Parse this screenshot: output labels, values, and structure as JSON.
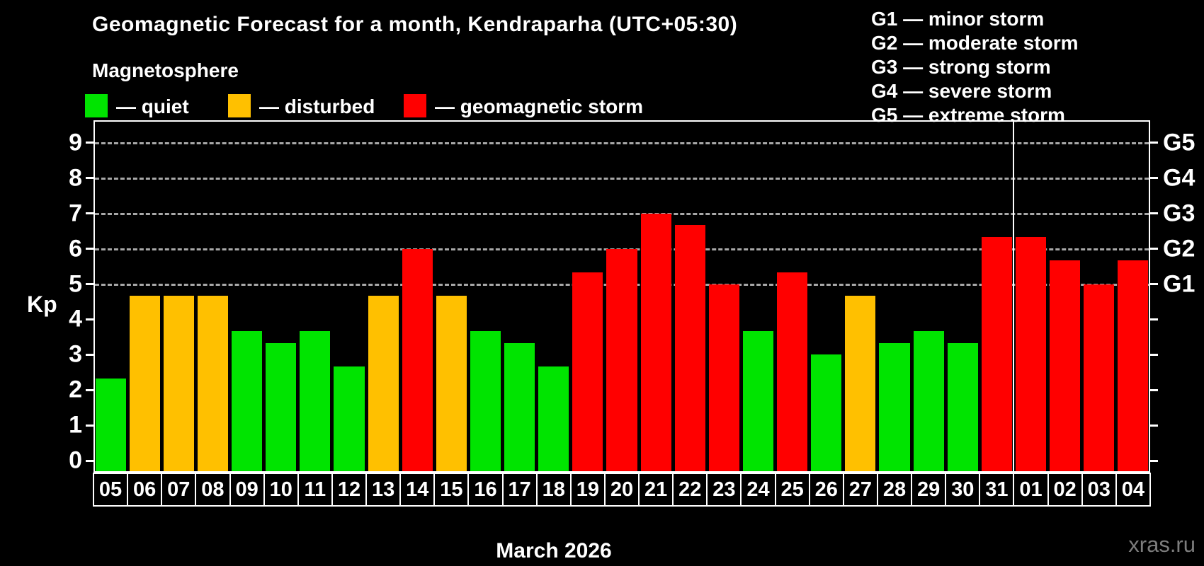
{
  "title": "Geomagnetic Forecast for a month, Kendraparha (UTC+05:30)",
  "subtitle": "Magnetosphere",
  "watermark": "xras.ru",
  "status_colors": {
    "quiet": "#00e400",
    "disturbed": "#ffc000",
    "storm": "#ff0000"
  },
  "legend": {
    "quiet_label": "— quiet",
    "disturbed_label": "— disturbed",
    "storm_label": "— geomagnetic storm"
  },
  "g_legend": [
    "G1 — minor storm",
    "G2 — moderate storm",
    "G3 — strong storm",
    "G4 — severe storm",
    "G5 — extreme storm"
  ],
  "chart_data": {
    "type": "bar",
    "title": "Geomagnetic Forecast for a month, Kendraparha (UTC+05:30)",
    "xlabel": "March 2026",
    "ylabel": "Kp",
    "ylim": [
      0,
      9.6
    ],
    "grid": "horizontal dashed lines at storm levels only",
    "legend_position": "top-left",
    "y_ticks": [
      0,
      1,
      2,
      3,
      4,
      5,
      6,
      7,
      8,
      9
    ],
    "gridlines_at": [
      5,
      6,
      7,
      8,
      9
    ],
    "right_axis_labels": [
      {
        "label": "G5",
        "kp": 9
      },
      {
        "label": "G4",
        "kp": 8
      },
      {
        "label": "G3",
        "kp": 7
      },
      {
        "label": "G2",
        "kp": 6
      },
      {
        "label": "G1",
        "kp": 5
      }
    ],
    "month_separator_index": 27,
    "categories": [
      "05",
      "06",
      "07",
      "08",
      "09",
      "10",
      "11",
      "12",
      "13",
      "14",
      "15",
      "16",
      "17",
      "18",
      "19",
      "20",
      "21",
      "22",
      "23",
      "24",
      "25",
      "26",
      "27",
      "28",
      "29",
      "30",
      "31",
      "01",
      "02",
      "03",
      "04"
    ],
    "values": [
      2.33,
      4.67,
      4.67,
      4.67,
      3.67,
      3.33,
      3.67,
      2.67,
      4.67,
      6.0,
      4.67,
      3.67,
      3.33,
      2.67,
      5.33,
      6.0,
      7.0,
      6.67,
      5.0,
      3.67,
      5.33,
      3.0,
      4.67,
      3.33,
      3.67,
      3.33,
      6.33,
      6.33,
      5.67,
      5.0,
      5.67
    ],
    "statuses": [
      "quiet",
      "disturbed",
      "disturbed",
      "disturbed",
      "quiet",
      "quiet",
      "quiet",
      "quiet",
      "disturbed",
      "storm",
      "disturbed",
      "quiet",
      "quiet",
      "quiet",
      "storm",
      "storm",
      "storm",
      "storm",
      "storm",
      "quiet",
      "storm",
      "quiet",
      "disturbed",
      "quiet",
      "quiet",
      "quiet",
      "storm",
      "storm",
      "storm",
      "storm",
      "storm"
    ]
  }
}
